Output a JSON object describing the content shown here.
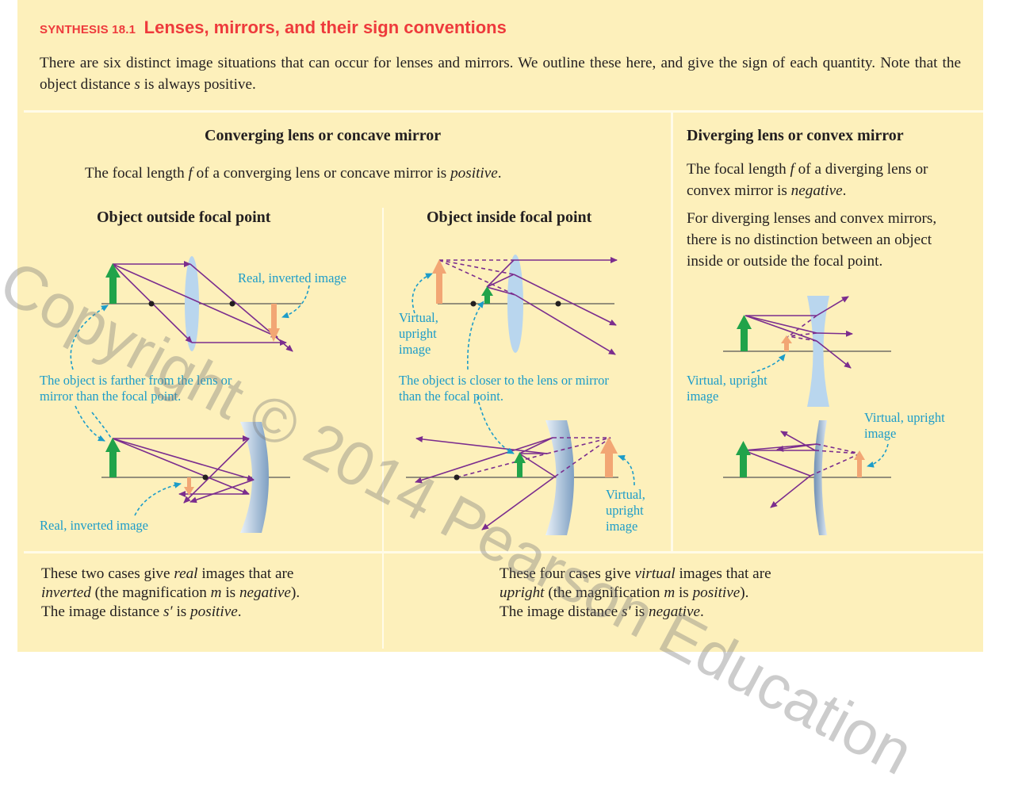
{
  "header": {
    "label": "SYNTHESIS 18.1",
    "title": "Lenses, mirrors, and their sign conventions"
  },
  "intro": {
    "text_before_s": "There are six distinct image situations that can occur for lenses and mirrors. We outline these here, and give the sign of each quantity. Note that the object distance ",
    "s_symbol": "s",
    "text_after_s": " is always positive."
  },
  "converging": {
    "heading": "Converging lens or concave mirror",
    "text_before": "The focal length ",
    "f_symbol": "f",
    "text_middle": " of a converging lens or concave mirror is ",
    "sign_word": "positive",
    "period": ".",
    "outside": {
      "heading": "Object outside focal point",
      "lens_caption": "Real, inverted image",
      "shared_caption": "The object is farther from the lens or mirror than the focal point.",
      "mirror_caption": "Real, inverted image"
    },
    "inside": {
      "heading": "Object inside focal point",
      "lens_caption": "Virtual, upright image",
      "shared_caption": "The object is closer to the lens or mirror than the focal point.",
      "mirror_caption": "Virtual, upright image"
    }
  },
  "diverging": {
    "heading": "Diverging lens or convex mirror",
    "text_before": "The focal length ",
    "f_symbol": "f",
    "text_middle": " of a diverging lens or convex mirror is ",
    "sign_word": "negative",
    "period": ".",
    "note": "For diverging lenses and convex mirrors, there is no distinction between an object inside or outside the focal point.",
    "lens_caption": "Virtual, upright image",
    "mirror_caption": "Virtual, upright image"
  },
  "summary_real": {
    "t1": "These two cases give ",
    "w1": "real",
    "t2": " images that are",
    "w2": "inverted",
    "t3": " (the magnification ",
    "m_symbol": "m",
    "t4": " is ",
    "w3": "negative",
    "t5": ").",
    "t6": "The image distance ",
    "s_prime": "s′",
    "t7": " is ",
    "w4": "positive",
    "t8": "."
  },
  "summary_virtual": {
    "t1": "These four cases give ",
    "w1": "virtual",
    "t2": " images that are",
    "w2": "upright",
    "t3": " (the magnification ",
    "m_symbol": "m",
    "t4": " is ",
    "w3": "positive",
    "t5": ").",
    "t6": "The image distance ",
    "s_prime": "s′",
    "t7": " is ",
    "w4": "negative",
    "t8": "."
  },
  "watermark": "Copyright © 2014 Pearson Education",
  "colors": {
    "panel_bg": "#fdf0bb",
    "title_red": "#ee3a3c",
    "ray_purple": "#7b2d8e",
    "object_green": "#21a34a",
    "image_orange": "#f2a674",
    "caption_blue": "#1c9cc9",
    "lens_blue": "#b9d6ee"
  }
}
